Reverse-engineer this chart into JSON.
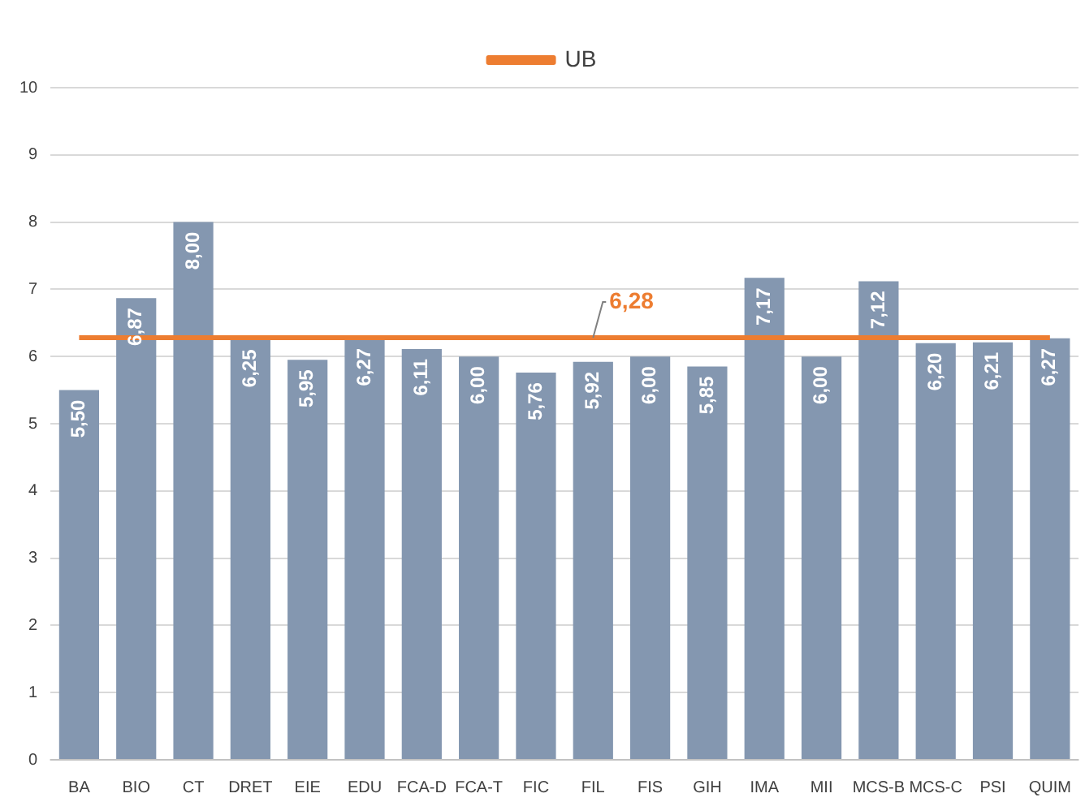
{
  "chart_data": {
    "type": "bar",
    "categories": [
      "BA",
      "BIO",
      "CT",
      "DRET",
      "EIE",
      "EDU",
      "FCA-D",
      "FCA-T",
      "FIC",
      "FIL",
      "FIS",
      "GIH",
      "IMA",
      "MII",
      "MCS-B",
      "MCS-C",
      "PSI",
      "QUIM"
    ],
    "series": [
      {
        "color": "#8497b0",
        "values": [
          5.5,
          6.87,
          8.0,
          6.25,
          5.95,
          6.27,
          6.11,
          6.0,
          5.76,
          5.92,
          6.0,
          5.85,
          7.17,
          6.0,
          7.12,
          6.2,
          6.21,
          6.27
        ],
        "value_labels": [
          "5,50",
          "6,87",
          "8,00",
          "6,25",
          "5,95",
          "6,27",
          "6,11",
          "6,00",
          "5,76",
          "5,92",
          "6,00",
          "5,85",
          "7,17",
          "6,00",
          "7,12",
          "6,20",
          "6,21",
          "6,27"
        ]
      },
      {
        "type": "line",
        "name": "UB",
        "color": "#ed7d31",
        "values": [
          6.28,
          6.28,
          6.28,
          6.28,
          6.28,
          6.28,
          6.28,
          6.28,
          6.28,
          6.28,
          6.28,
          6.28,
          6.28,
          6.28,
          6.28,
          6.28,
          6.28,
          6.28
        ]
      }
    ],
    "annotations": [
      {
        "text": "6,28",
        "x": "FIL",
        "y": 6.28
      }
    ],
    "ylim": [
      0,
      10
    ],
    "yticks": [
      0,
      1,
      2,
      3,
      4,
      5,
      6,
      7,
      8,
      9,
      10
    ],
    "grid": "y",
    "legend": "top",
    "marker": "none"
  }
}
